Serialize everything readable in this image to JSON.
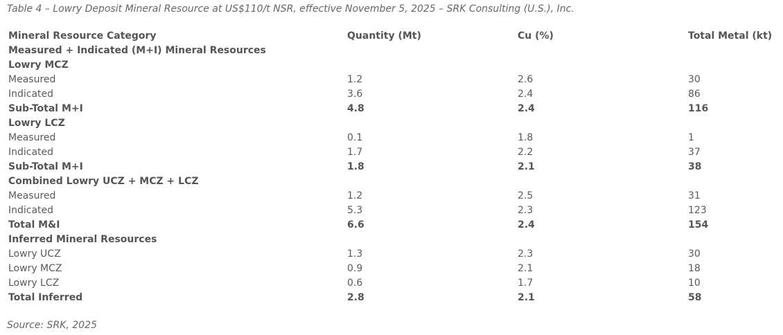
{
  "caption": "Table 4 – Lowry Deposit Mineral Resource at US$110/t NSR, effective November 5, 2025 – SRK Consulting (U.S.), Inc.",
  "headers": [
    "Mineral Resource Category",
    "Quantity (Mt)",
    "Cu (%)",
    "Total Metal (kt)"
  ],
  "rows": [
    {
      "kind": "section",
      "cells": [
        "Measured + Indicated (M+I) Mineral Resources"
      ]
    },
    {
      "kind": "section",
      "cells": [
        "Lowry MCZ"
      ]
    },
    {
      "kind": "data",
      "cells": [
        "Measured",
        "1.2",
        "2.6",
        "30"
      ]
    },
    {
      "kind": "data",
      "cells": [
        "Indicated",
        "3.6",
        "2.4",
        "86"
      ]
    },
    {
      "kind": "total",
      "cells": [
        "Sub-Total M+I",
        "4.8",
        "2.4",
        "116"
      ]
    },
    {
      "kind": "section",
      "cells": [
        "Lowry LCZ"
      ]
    },
    {
      "kind": "data",
      "cells": [
        "Measured",
        "0.1",
        "1.8",
        "1"
      ]
    },
    {
      "kind": "data",
      "cells": [
        "Indicated",
        "1.7",
        "2.2",
        "37"
      ]
    },
    {
      "kind": "total",
      "cells": [
        "Sub-Total M+I",
        "1.8",
        "2.1",
        "38"
      ]
    },
    {
      "kind": "section",
      "cells": [
        "Combined Lowry UCZ + MCZ + LCZ"
      ]
    },
    {
      "kind": "data",
      "cells": [
        "Measured",
        "1.2",
        "2.5",
        "31"
      ]
    },
    {
      "kind": "data",
      "cells": [
        "Indicated",
        "5.3",
        "2.3",
        "123"
      ]
    },
    {
      "kind": "total",
      "cells": [
        "Total M&I",
        "6.6",
        "2.4",
        "154"
      ]
    },
    {
      "kind": "section",
      "cells": [
        "Inferred Mineral Resources"
      ]
    },
    {
      "kind": "data",
      "cells": [
        "Lowry UCZ",
        "1.3",
        "2.3",
        "30"
      ]
    },
    {
      "kind": "data",
      "cells": [
        "Lowry MCZ",
        "0.9",
        "2.1",
        "18"
      ]
    },
    {
      "kind": "data",
      "cells": [
        "Lowry LCZ",
        "0.6",
        "1.7",
        "10"
      ]
    },
    {
      "kind": "total",
      "cells": [
        "Total Inferred",
        "2.8",
        "2.1",
        "58"
      ]
    }
  ],
  "source": "Source: SRK, 2025"
}
